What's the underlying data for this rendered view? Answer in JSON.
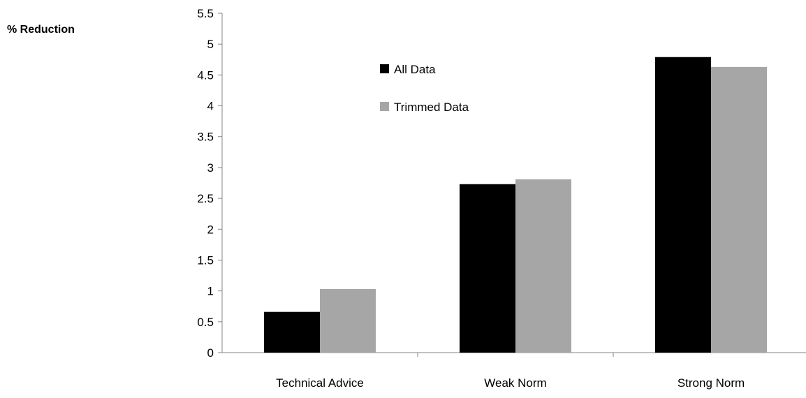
{
  "chart_data": {
    "type": "bar",
    "ylabel": "% Reduction",
    "xlabel": "",
    "title": "",
    "categories": [
      "Technical Advice",
      "Weak Norm",
      "Strong Norm"
    ],
    "series": [
      {
        "name": "All Data",
        "values": [
          0.66,
          2.73,
          4.79
        ],
        "color": "#000000"
      },
      {
        "name": "Trimmed Data",
        "values": [
          1.03,
          2.81,
          4.63
        ],
        "color": "#a6a6a6"
      }
    ],
    "ylim": [
      0,
      5.5
    ],
    "yticks": [
      "0",
      "0.5",
      "1",
      "1.5",
      "2",
      "2.5",
      "3",
      "3.5",
      "4",
      "4.5",
      "5",
      "5.5"
    ],
    "grid": false,
    "legend_position": "top-center"
  }
}
